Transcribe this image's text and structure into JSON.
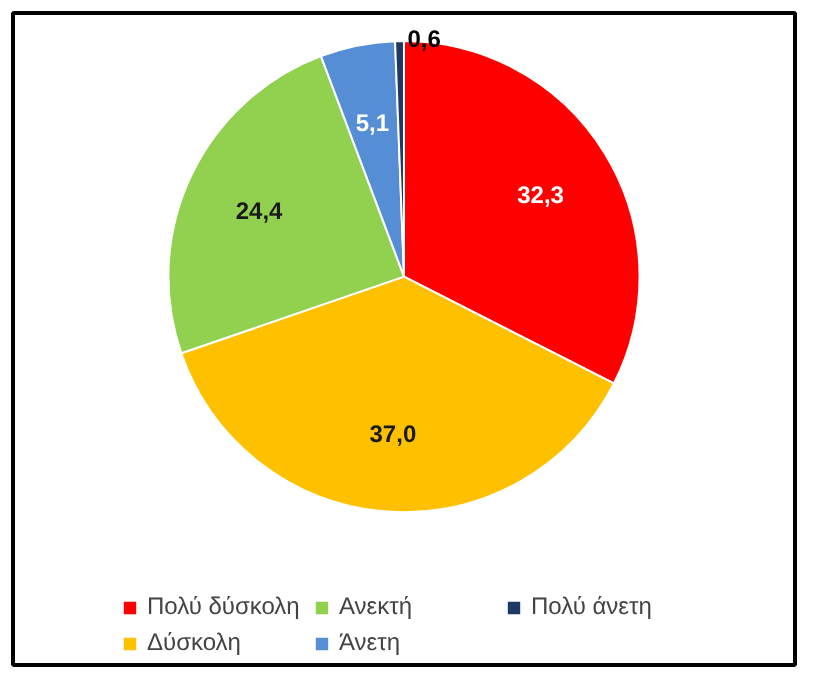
{
  "chart_data": {
    "type": "pie",
    "categories": [
      "Πολύ δύσκολη",
      "Δύσκολη",
      "Ανεκτή",
      "Άνετη",
      "Πολύ άνετη"
    ],
    "values": [
      32.3,
      37.0,
      24.4,
      5.1,
      0.6
    ],
    "value_labels": [
      "32,3",
      "37,0",
      "24,4",
      "5,1",
      "0,6"
    ],
    "colors": [
      "#ff0000",
      "#ffc000",
      "#92d050",
      "#558ed5",
      "#1f3864"
    ],
    "legend": "bottom"
  }
}
